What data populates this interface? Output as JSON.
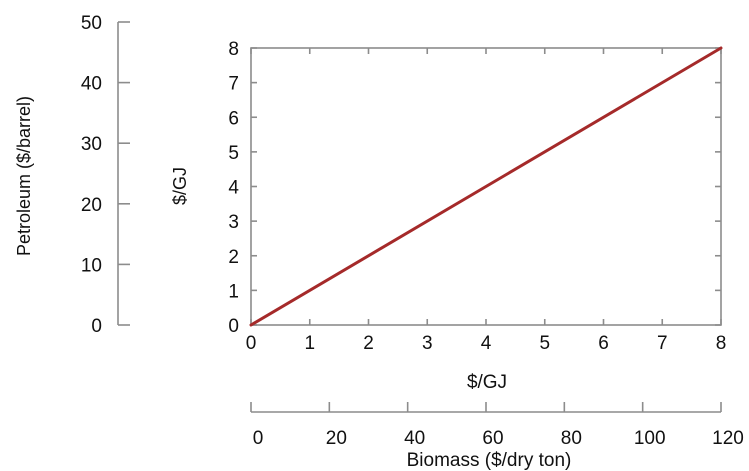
{
  "chart_data": {
    "type": "line",
    "x": [
      0,
      8
    ],
    "series": [
      {
        "values": [
          0,
          8
        ],
        "color": "#a52a2a"
      }
    ],
    "xlabel": "$/GJ",
    "ylabel": "$/GJ",
    "xlim": [
      0,
      8
    ],
    "ylim": [
      0,
      8
    ],
    "xticks": [
      0,
      1,
      2,
      3,
      4,
      5,
      6,
      7,
      8
    ],
    "yticks": [
      0,
      1,
      2,
      3,
      4,
      5,
      6,
      7,
      8
    ],
    "grid": false,
    "secondary_y_axis": {
      "label": "Petroleum ($/barrel)",
      "ticks": [
        0,
        10,
        20,
        30,
        40,
        50
      ],
      "position": "left"
    },
    "secondary_x_axis": {
      "label": "Biomass ($/dry ton)",
      "ticks": [
        0,
        20,
        40,
        60,
        80,
        100,
        120
      ],
      "position": "bottom"
    }
  }
}
